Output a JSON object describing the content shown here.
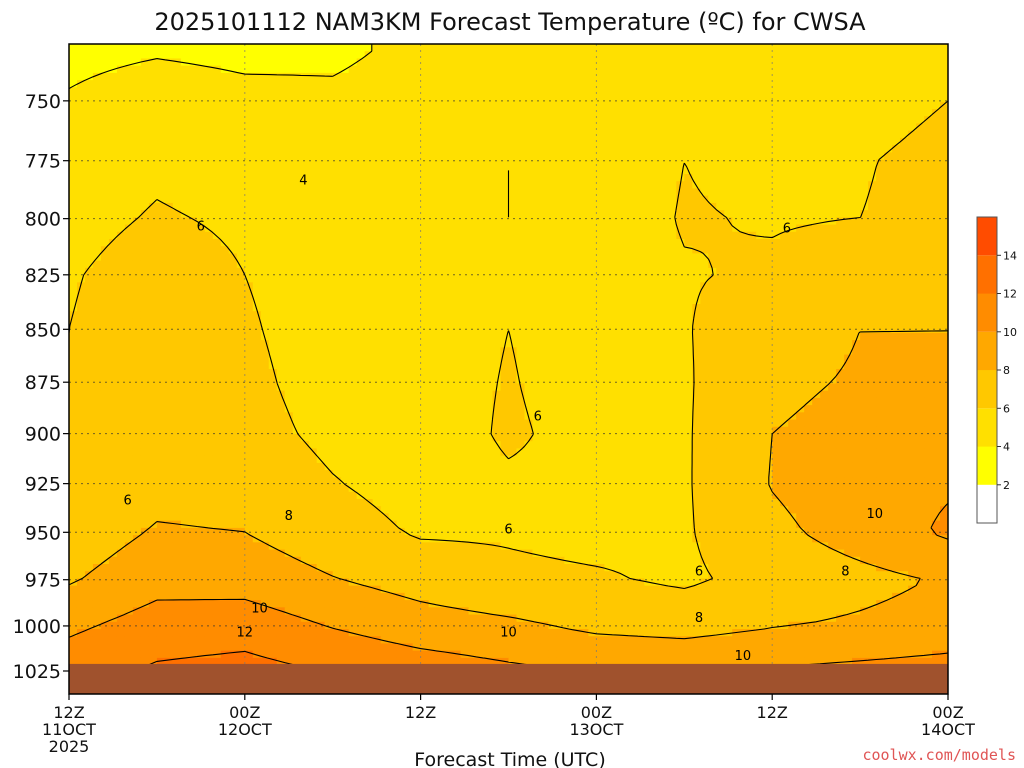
{
  "chart_data": {
    "type": "contour",
    "title": "2025101112 NAM3KM Forecast Temperature (ºC) for CWSA",
    "xlabel": "Forecast Time (UTC)",
    "ylabel": "",
    "x_ticks": [
      {
        "hour": 0,
        "lines": [
          "12Z",
          "11OCT",
          "2025"
        ]
      },
      {
        "hour": 12,
        "lines": [
          "00Z",
          "12OCT"
        ]
      },
      {
        "hour": 24,
        "lines": [
          "12Z"
        ]
      },
      {
        "hour": 36,
        "lines": [
          "00Z",
          "13OCT"
        ]
      },
      {
        "hour": 48,
        "lines": [
          "12Z"
        ]
      },
      {
        "hour": 60,
        "lines": [
          "00Z",
          "14OCT"
        ]
      }
    ],
    "xlim": [
      0,
      60
    ],
    "y_ticks": [
      750,
      775,
      800,
      825,
      850,
      875,
      900,
      925,
      950,
      975,
      1000,
      1025
    ],
    "ylim": [
      727,
      1038
    ],
    "y_scale": "log",
    "y_inverted": true,
    "grid": true,
    "surface_pressure_hpa": 1021,
    "colorbar": {
      "levels": [
        2,
        4,
        6,
        8,
        10,
        12,
        14
      ],
      "labels": [
        "2",
        "4",
        "6",
        "8",
        "10",
        "12",
        "14"
      ],
      "colors": [
        "#ffffff",
        "#ffff00",
        "#ffe000",
        "#ffc800",
        "#ffa800",
        "#ff8c00",
        "#ff7000",
        "#ff4c00"
      ]
    },
    "ground_color": "#a0522d",
    "contour_labels": [
      {
        "text": "4",
        "hour": 16.0,
        "p": 783
      },
      {
        "text": "6",
        "hour": 9.0,
        "p": 803
      },
      {
        "text": "6",
        "hour": 49.0,
        "p": 804
      },
      {
        "text": "6",
        "hour": 32.0,
        "p": 891
      },
      {
        "text": "6",
        "hour": 4.0,
        "p": 933
      },
      {
        "text": "8",
        "hour": 15.0,
        "p": 941
      },
      {
        "text": "6",
        "hour": 30.0,
        "p": 948
      },
      {
        "text": "10",
        "hour": 55.0,
        "p": 940
      },
      {
        "text": "6",
        "hour": 43.0,
        "p": 970
      },
      {
        "text": "8",
        "hour": 53.0,
        "p": 970
      },
      {
        "text": "10",
        "hour": 13.0,
        "p": 990
      },
      {
        "text": "8",
        "hour": 43.0,
        "p": 995
      },
      {
        "text": "12",
        "hour": 12.0,
        "p": 1003
      },
      {
        "text": "10",
        "hour": 30.0,
        "p": 1003
      },
      {
        "text": "10",
        "hour": 46.0,
        "p": 1016
      }
    ],
    "field": {
      "hours": [
        0,
        6,
        12,
        18,
        24,
        30,
        36,
        42,
        48,
        54,
        60
      ],
      "levels": [
        730,
        750,
        775,
        800,
        825,
        850,
        875,
        900,
        925,
        950,
        975,
        1000,
        1025
      ],
      "values": [
        [
          3.4,
          3.8,
          3.5,
          3.6,
          4.5,
          5.0,
          5.0,
          5.0,
          4.2,
          4.8,
          5.4
        ],
        [
          4.2,
          5.2,
          4.6,
          4.4,
          5.0,
          5.6,
          5.0,
          5.5,
          4.8,
          5.5,
          6.0
        ],
        [
          4.8,
          5.6,
          5.1,
          4.6,
          5.2,
          6.0,
          5.1,
          6.0,
          5.6,
          5.9,
          6.4
        ],
        [
          5.3,
          6.2,
          5.7,
          4.9,
          5.3,
          6.0,
          5.2,
          6.1,
          5.9,
          6.0,
          6.4
        ],
        [
          5.8,
          7.0,
          6.0,
          5.2,
          5.3,
          5.8,
          5.3,
          5.9,
          6.2,
          6.8,
          7.0
        ],
        [
          6.0,
          7.3,
          6.2,
          5.2,
          5.3,
          6.0,
          5.3,
          5.9,
          7.0,
          8.0,
          8.0
        ],
        [
          6.0,
          7.2,
          6.4,
          5.3,
          5.3,
          6.1,
          5.3,
          5.8,
          7.6,
          8.2,
          8.4
        ],
        [
          6.1,
          7.0,
          6.6,
          5.6,
          5.2,
          6.2,
          5.5,
          5.8,
          8.0,
          8.6,
          9.4
        ],
        [
          6.2,
          7.3,
          7.1,
          6.1,
          5.3,
          5.8,
          5.7,
          5.8,
          8.1,
          9.3,
          9.8
        ],
        [
          6.8,
          8.2,
          8.0,
          6.8,
          5.8,
          5.8,
          5.5,
          5.8,
          7.5,
          8.9,
          10.3
        ],
        [
          7.8,
          9.3,
          9.2,
          8.1,
          7.2,
          6.4,
          6.2,
          5.7,
          6.6,
          7.4,
          8.2
        ],
        [
          9.6,
          10.9,
          11.1,
          9.9,
          8.9,
          8.4,
          7.6,
          7.3,
          7.9,
          8.3,
          8.8
        ],
        [
          11.2,
          12.3,
          12.7,
          11.9,
          11.1,
          10.4,
          9.9,
          9.8,
          10.2,
          10.5,
          10.8
        ]
      ]
    }
  },
  "credit": "coolwx.com/models"
}
